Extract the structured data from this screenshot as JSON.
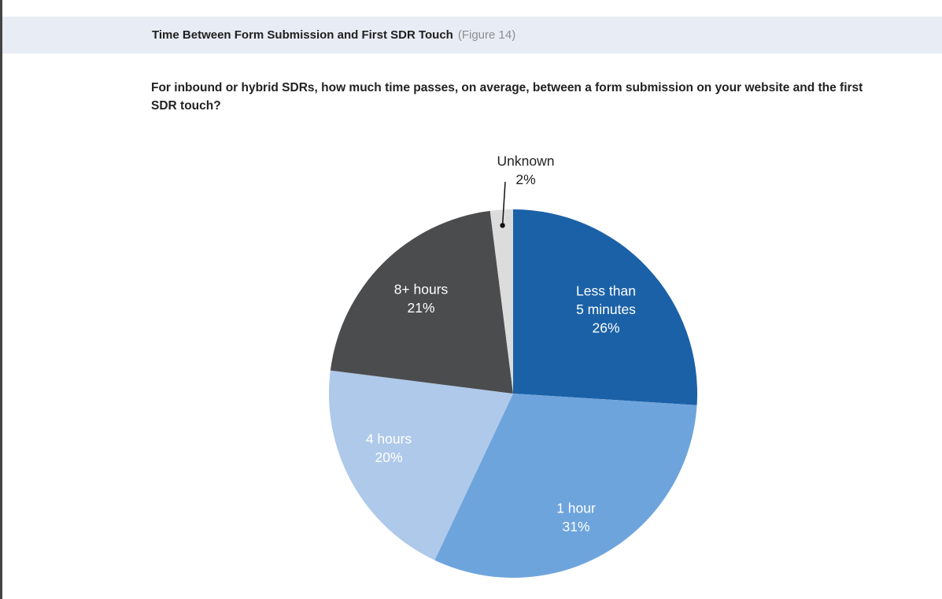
{
  "header": {
    "title": "Time Between Form Submission and First SDR Touch",
    "figure": "(Figure 14)"
  },
  "question": "For inbound or hybrid SDRs, how much time passes, on average, between a form submission on your website and the first SDR touch?",
  "chart_data": {
    "type": "pie",
    "title": "Time Between Form Submission and First SDR Touch",
    "start_angle_deg": 0,
    "direction": "clockwise",
    "slices": [
      {
        "label_lines": [
          "Less than",
          "5 minutes"
        ],
        "value_label": "26%",
        "value": 26,
        "color": "#1b61a7",
        "text_color": "#ffffff"
      },
      {
        "label_lines": [
          "1 hour"
        ],
        "value_label": "31%",
        "value": 31,
        "color": "#6ea4dc",
        "text_color": "#ffffff"
      },
      {
        "label_lines": [
          "4 hours"
        ],
        "value_label": "20%",
        "value": 20,
        "color": "#aec9ea",
        "text_color": "#ffffff"
      },
      {
        "label_lines": [
          "8+ hours"
        ],
        "value_label": "21%",
        "value": 21,
        "color": "#4b4c4e",
        "text_color": "#ffffff"
      },
      {
        "label_lines": [
          "Unknown"
        ],
        "value_label": "2%",
        "value": 2,
        "color": "#dcdcdc",
        "text_color": "#222222",
        "callout": true
      }
    ]
  }
}
